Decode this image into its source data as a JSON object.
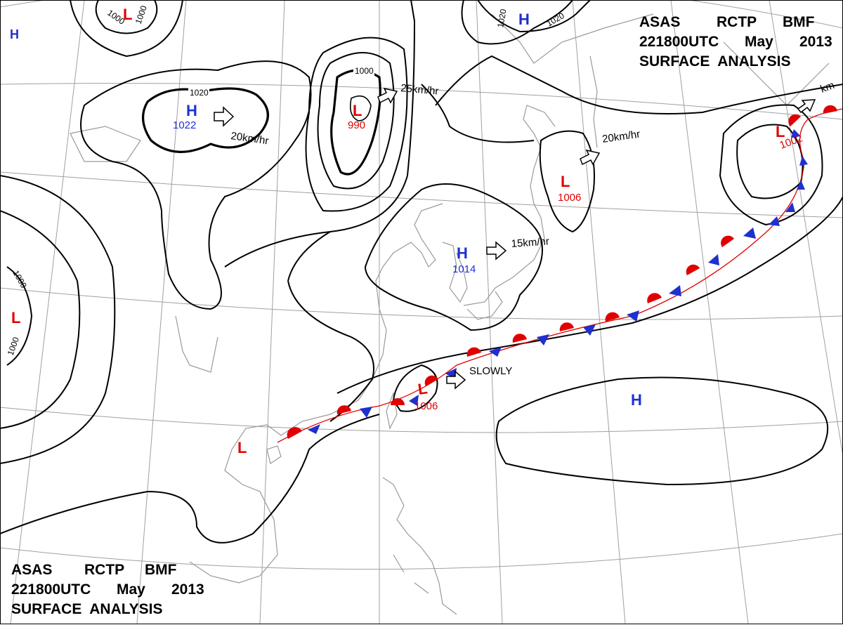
{
  "header_top": {
    "line1": [
      "ASAS",
      "RCTP",
      "BMF"
    ],
    "line2": [
      "221800UTC",
      "May",
      "2013"
    ],
    "line3": "SURFACE  ANALYSIS"
  },
  "header_bottom": {
    "line1": [
      "ASAS",
      "RCTP",
      "BMF"
    ],
    "line2": [
      "221800UTC",
      "May",
      "2013"
    ],
    "line3": "SURFACE  ANALYSIS"
  },
  "colors": {
    "high": "#1f2fd0",
    "low": "#e00000",
    "isobar": "#000000",
    "coast": "#9a9a9a"
  },
  "systems": {
    "high_china": {
      "symbol": "H",
      "pressure": "1022"
    },
    "high_korea": {
      "symbol": "H",
      "pressure": "1014"
    },
    "high_pacific": {
      "symbol": "H"
    },
    "high_topleft": {
      "symbol": "H"
    },
    "high_topright": {
      "symbol": "H"
    },
    "low_mongolia": {
      "symbol": "L",
      "pressure": "990"
    },
    "low_hokkaido": {
      "symbol": "L",
      "pressure": "1006"
    },
    "low_taiwan": {
      "symbol": "L",
      "pressure": "1006"
    },
    "low_kamchatka": {
      "symbol": "L",
      "pressure": "1002"
    },
    "low_topleft": {
      "symbol": "L"
    },
    "low_west": {
      "symbol": "L"
    },
    "low_southchina": {
      "symbol": "L"
    }
  },
  "movements": {
    "china_high": "20km/hr",
    "mongolia_low": "25km/hr",
    "korea_high": "15km/hr",
    "hokkaido_low": "20km/hr",
    "taiwan_low": "SLOWLY",
    "kamchatka_low": "km"
  },
  "isobar_labels": {
    "ring1020": "1020",
    "mongolia1000": "1000",
    "topleft1000a": "1000",
    "topleft1000b": "1000",
    "top1020a": "1020",
    "top1020b": "1020",
    "west1000a": "1000",
    "west1000b": "1000"
  }
}
